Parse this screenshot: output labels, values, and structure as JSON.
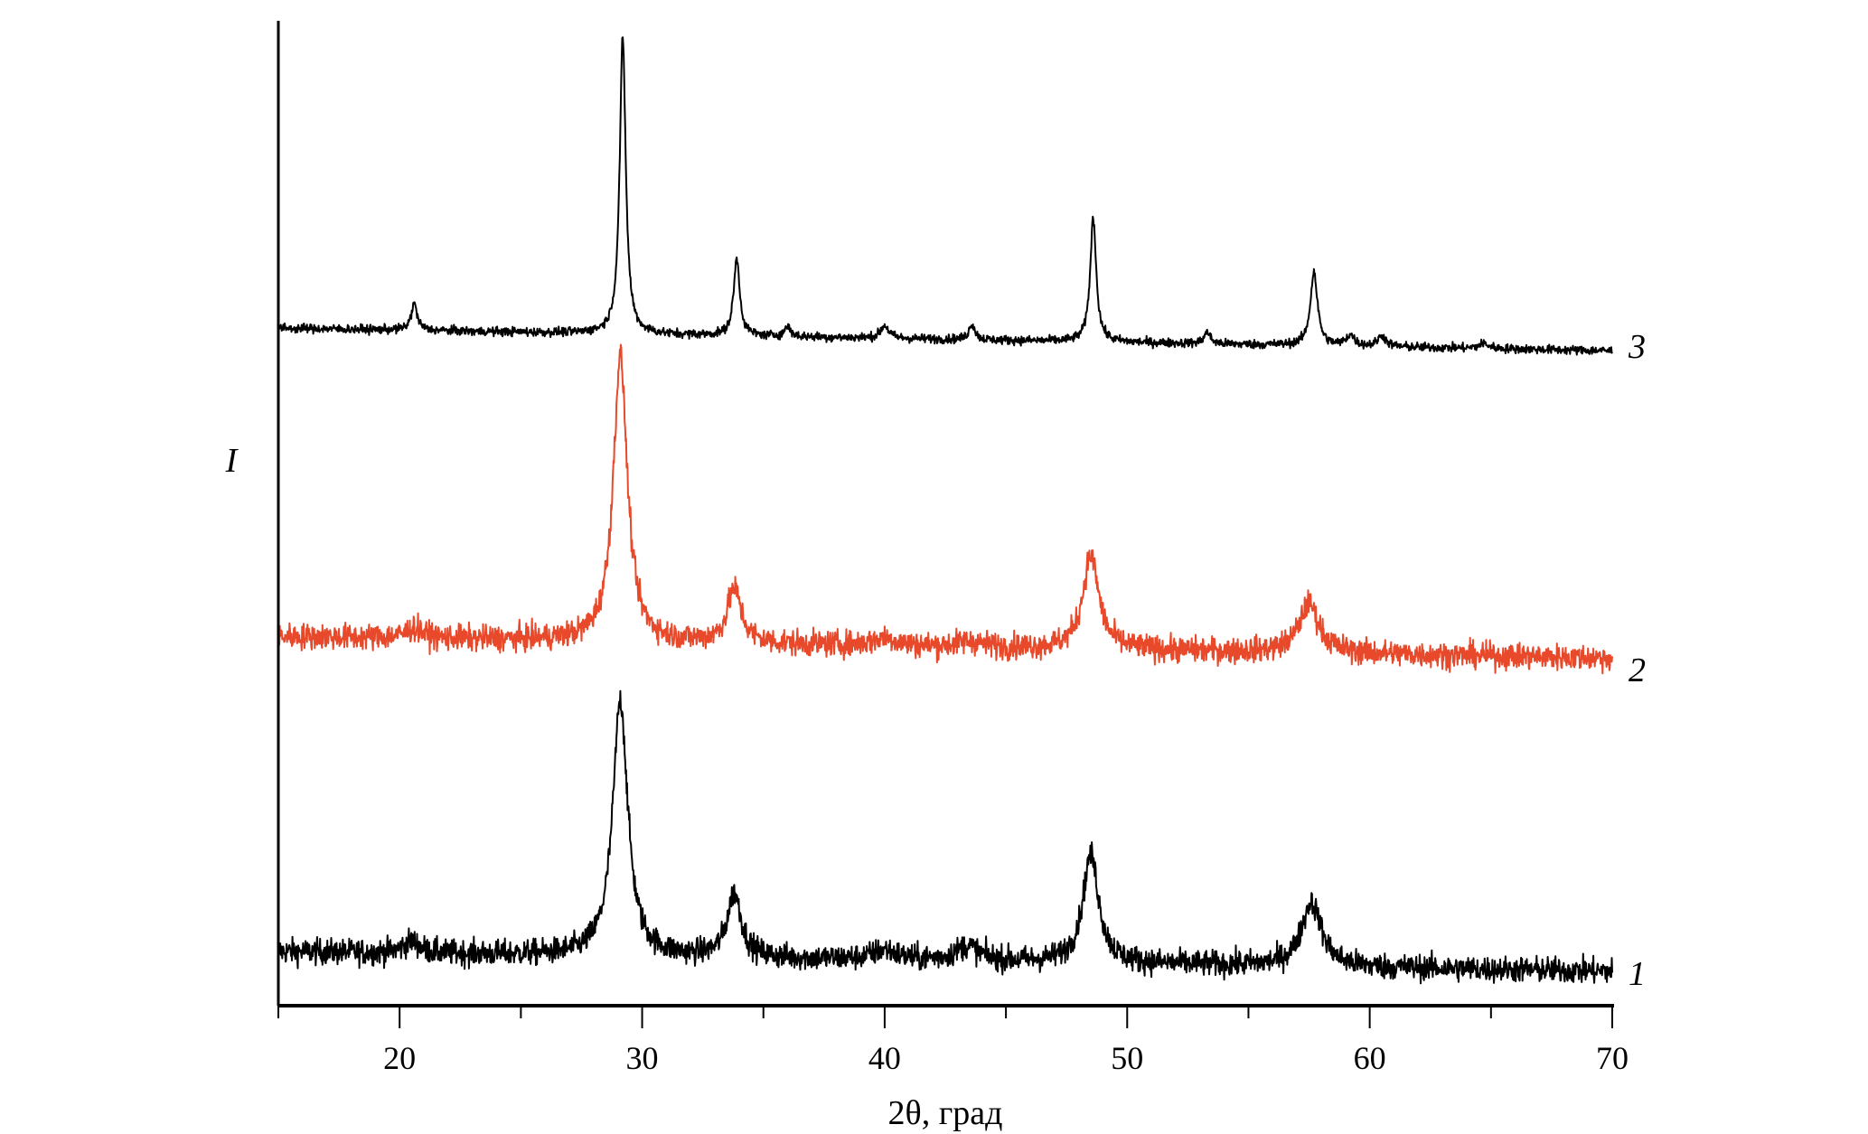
{
  "chart_data": {
    "type": "line",
    "title": "",
    "xlabel": "2θ, град",
    "ylabel": "I",
    "xlim": [
      15,
      70
    ],
    "ylim": [
      0,
      100
    ],
    "x_ticks": [
      20,
      30,
      40,
      50,
      60,
      70
    ],
    "x_minor_ticks": [
      15,
      25,
      35,
      45,
      55,
      65
    ],
    "grid": false,
    "legend": "series labels at right end of each curve",
    "units_note": "intensity in arbitrary units, curves vertically offset",
    "series": [
      {
        "name": "1",
        "color": "#000000",
        "baseline": [
          5.5,
          3.5
        ],
        "noise": 1.3,
        "peaks": [
          {
            "x": 20.5,
            "height": 1.2,
            "fwhm": 0.8
          },
          {
            "x": 29.1,
            "height": 26,
            "fwhm": 0.75
          },
          {
            "x": 33.8,
            "height": 6.5,
            "fwhm": 0.7
          },
          {
            "x": 40.0,
            "height": 1.0,
            "fwhm": 1.2
          },
          {
            "x": 43.4,
            "height": 1.5,
            "fwhm": 1.2
          },
          {
            "x": 48.5,
            "height": 11,
            "fwhm": 0.8
          },
          {
            "x": 57.6,
            "height": 6.5,
            "fwhm": 1.0
          }
        ]
      },
      {
        "name": "2",
        "color": "#e8492a",
        "baseline": [
          37.5,
          35.3
        ],
        "noise": 1.3,
        "peaks": [
          {
            "x": 20.6,
            "height": 1.0,
            "fwhm": 0.9
          },
          {
            "x": 29.1,
            "height": 29,
            "fwhm": 0.7
          },
          {
            "x": 33.8,
            "height": 5.5,
            "fwhm": 0.7
          },
          {
            "x": 40.0,
            "height": 0.8,
            "fwhm": 1.2
          },
          {
            "x": 43.5,
            "height": 0.6,
            "fwhm": 1.2
          },
          {
            "x": 48.5,
            "height": 9.5,
            "fwhm": 0.8
          },
          {
            "x": 57.5,
            "height": 5,
            "fwhm": 1.0
          }
        ]
      },
      {
        "name": "3",
        "color": "#000000",
        "baseline": [
          68.8,
          66.5
        ],
        "noise": 0.45,
        "peaks": [
          {
            "x": 20.6,
            "height": 2.7,
            "fwhm": 0.3
          },
          {
            "x": 29.2,
            "height": 30,
            "fwhm": 0.3
          },
          {
            "x": 33.9,
            "height": 7.8,
            "fwhm": 0.3
          },
          {
            "x": 36.0,
            "height": 1.0,
            "fwhm": 0.3
          },
          {
            "x": 40.0,
            "height": 1.3,
            "fwhm": 0.4
          },
          {
            "x": 43.6,
            "height": 1.6,
            "fwhm": 0.3
          },
          {
            "x": 48.6,
            "height": 12.6,
            "fwhm": 0.3
          },
          {
            "x": 53.3,
            "height": 1.2,
            "fwhm": 0.3
          },
          {
            "x": 57.7,
            "height": 7.5,
            "fwhm": 0.35
          },
          {
            "x": 59.2,
            "height": 1.1,
            "fwhm": 0.4
          },
          {
            "x": 60.5,
            "height": 1.1,
            "fwhm": 0.4
          },
          {
            "x": 64.7,
            "height": 0.5,
            "fwhm": 0.5
          }
        ]
      }
    ]
  }
}
